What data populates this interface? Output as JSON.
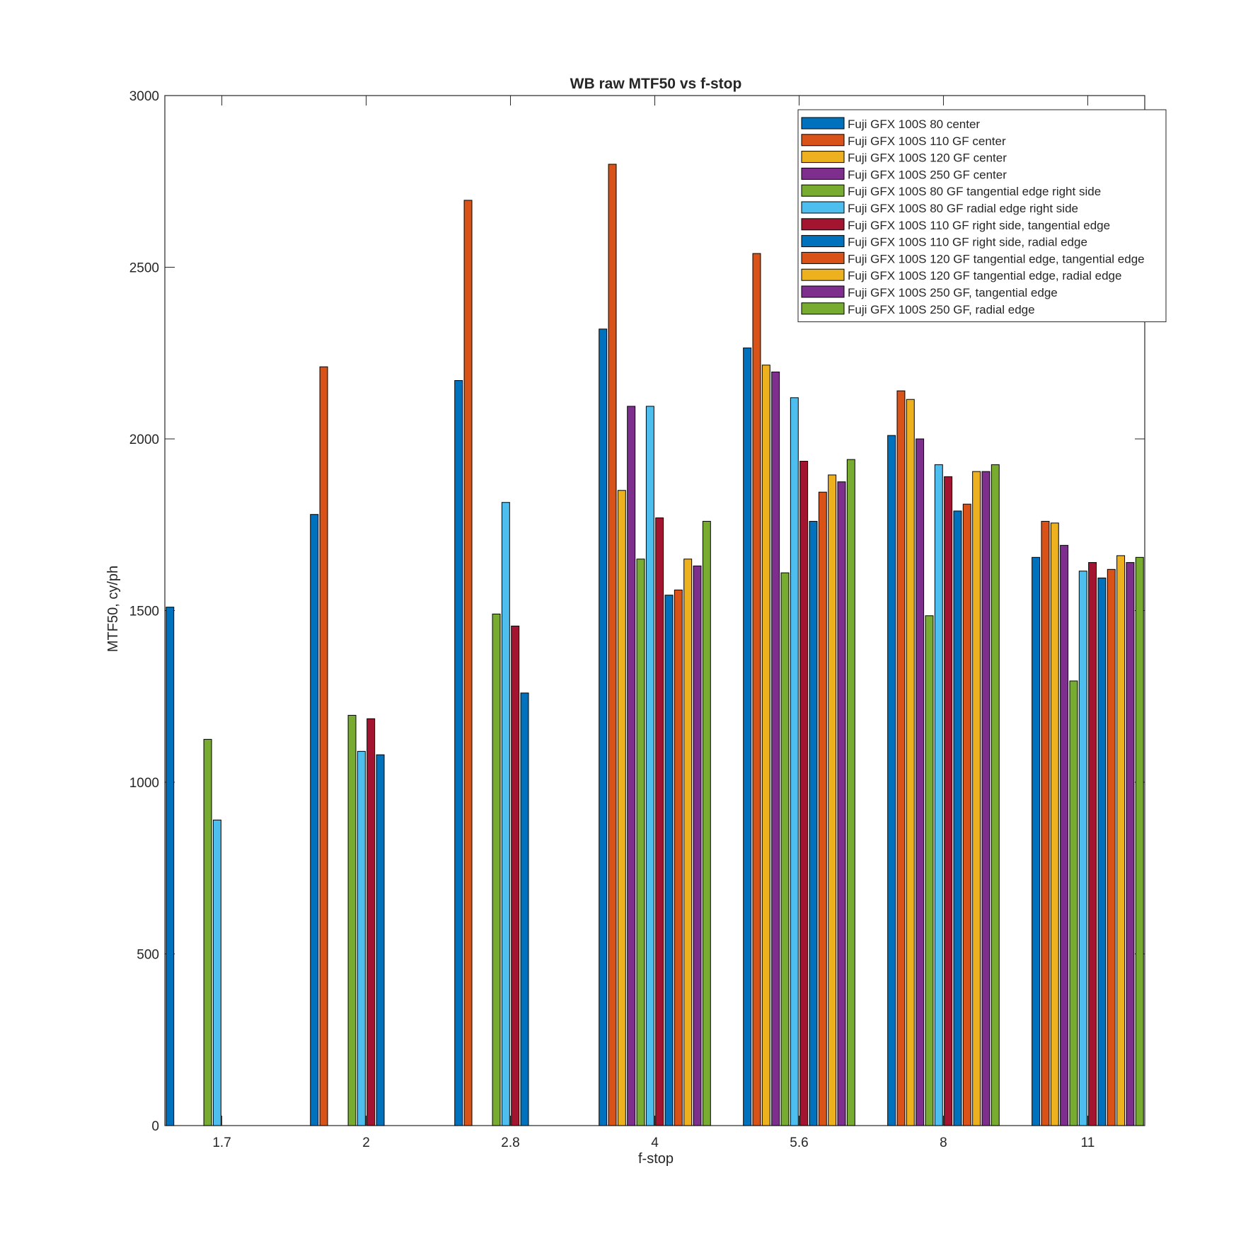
{
  "chart_data": {
    "type": "bar",
    "title": "WB raw MTF50 vs f-stop",
    "xlabel": "f-stop",
    "ylabel": "MTF50, cy/ph",
    "ylim": [
      0,
      3000
    ],
    "yticks": [
      0,
      500,
      1000,
      1500,
      2000,
      2500,
      3000
    ],
    "categories": [
      "1.7",
      "2",
      "2.8",
      "4",
      "5.6",
      "8",
      "11"
    ],
    "grid": false,
    "legend_position": "top-right",
    "series": [
      {
        "name": "Fuji GFX 100S 80 center",
        "color": "#0072BD",
        "values": [
          1510,
          1780,
          2170,
          2320,
          2265,
          2010,
          1655
        ]
      },
      {
        "name": "Fuji GFX 100S 110 GF center",
        "color": "#D95319",
        "values": [
          null,
          2210,
          2695,
          2800,
          2540,
          2140,
          1760
        ]
      },
      {
        "name": "Fuji GFX 100S 120 GF center",
        "color": "#EDB120",
        "values": [
          null,
          null,
          null,
          1850,
          2215,
          2115,
          1755
        ]
      },
      {
        "name": "Fuji GFX 100S 250 GF center",
        "color": "#7E2F8E",
        "values": [
          null,
          null,
          null,
          2095,
          2195,
          2000,
          1690
        ]
      },
      {
        "name": "Fuji GFX 100S 80 GF tangential edge right side",
        "color": "#77AC30",
        "values": [
          1125,
          1195,
          1490,
          1650,
          1610,
          1485,
          1295
        ]
      },
      {
        "name": "Fuji GFX 100S 80 GF radial edge right side",
        "color": "#4DBEEE",
        "values": [
          890,
          1090,
          1815,
          2095,
          2120,
          1925,
          1615
        ]
      },
      {
        "name": "Fuji GFX 100S 110 GF right side, tangential edge",
        "color": "#A2142F",
        "values": [
          null,
          1185,
          1455,
          1770,
          1935,
          1890,
          1640
        ]
      },
      {
        "name": "Fuji GFX 100S 110 GF right side, radial edge",
        "color": "#0072BD",
        "values": [
          null,
          1080,
          1260,
          1545,
          1760,
          1790,
          1595
        ]
      },
      {
        "name": "Fuji GFX 100S 120 GF tangential edge, tangential edge",
        "color": "#D95319",
        "values": [
          null,
          null,
          null,
          1560,
          1845,
          1810,
          1620
        ]
      },
      {
        "name": "Fuji GFX 100S 120 GF tangential edge, radial edge",
        "color": "#EDB120",
        "values": [
          null,
          null,
          null,
          1650,
          1895,
          1905,
          1660
        ]
      },
      {
        "name": "Fuji GFX 100S 250 GF, tangential edge",
        "color": "#7E2F8E",
        "values": [
          null,
          null,
          null,
          1630,
          1875,
          1905,
          1640
        ]
      },
      {
        "name": "Fuji GFX 100S 250 GF, radial edge",
        "color": "#77AC30",
        "values": [
          null,
          null,
          null,
          1760,
          1940,
          1925,
          1655
        ]
      }
    ]
  }
}
